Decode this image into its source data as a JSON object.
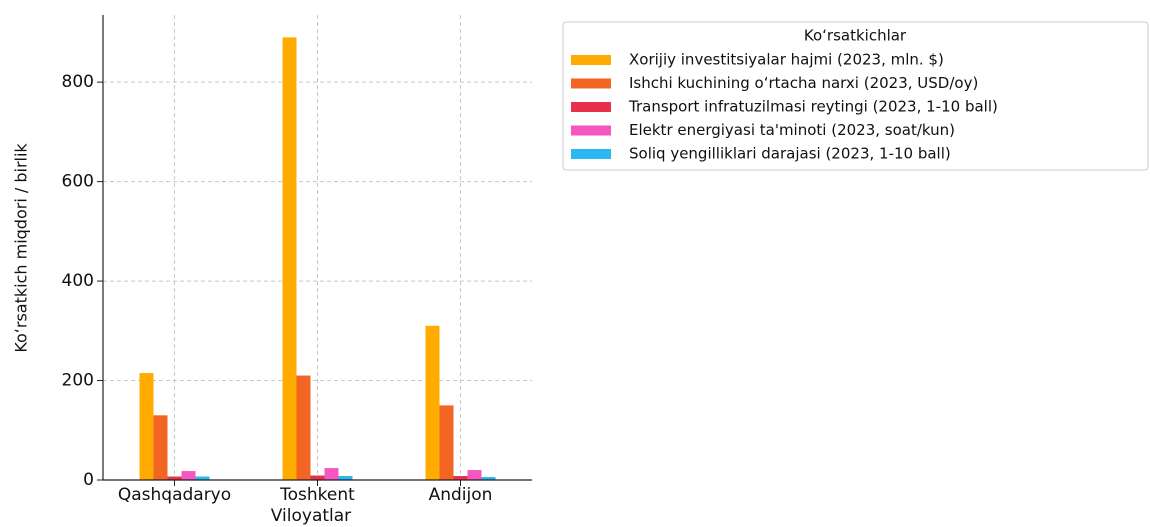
{
  "chart_data": {
    "type": "bar",
    "categories": [
      "Qashqadaryo",
      "Toshkent",
      "Andijon"
    ],
    "series": [
      {
        "name": "Xorijiy investitsiyalar hajmi (2023, mln. $)",
        "color": "#ffab00",
        "values": [
          215,
          890,
          310
        ]
      },
      {
        "name": "Ishchi kuchining oʻrtacha narxi (2023, USD/oy)",
        "color": "#f26522",
        "values": [
          130,
          210,
          150
        ]
      },
      {
        "name": "Transport infratuzilmasi reytingi (2023, 1-10 ball)",
        "color": "#e8304a",
        "values": [
          7,
          9,
          8
        ]
      },
      {
        "name": "Elektr energiyasi ta'minoti (2023, soat/kun)",
        "color": "#f556c0",
        "values": [
          18,
          24,
          20
        ]
      },
      {
        "name": "Soliq yengilliklari darajasi (2023, 1-10 ball)",
        "color": "#2ab8f0",
        "values": [
          7,
          8,
          6
        ]
      }
    ],
    "xlabel": "Viloyatlar",
    "ylabel": "Koʻrsatkich miqdori / birlik",
    "legend_title": "Koʻrsatkichlar",
    "legend": "upper right outside",
    "ylim": [
      0,
      935
    ],
    "yticks": [
      0,
      200,
      400,
      600,
      800
    ],
    "grid": true
  }
}
